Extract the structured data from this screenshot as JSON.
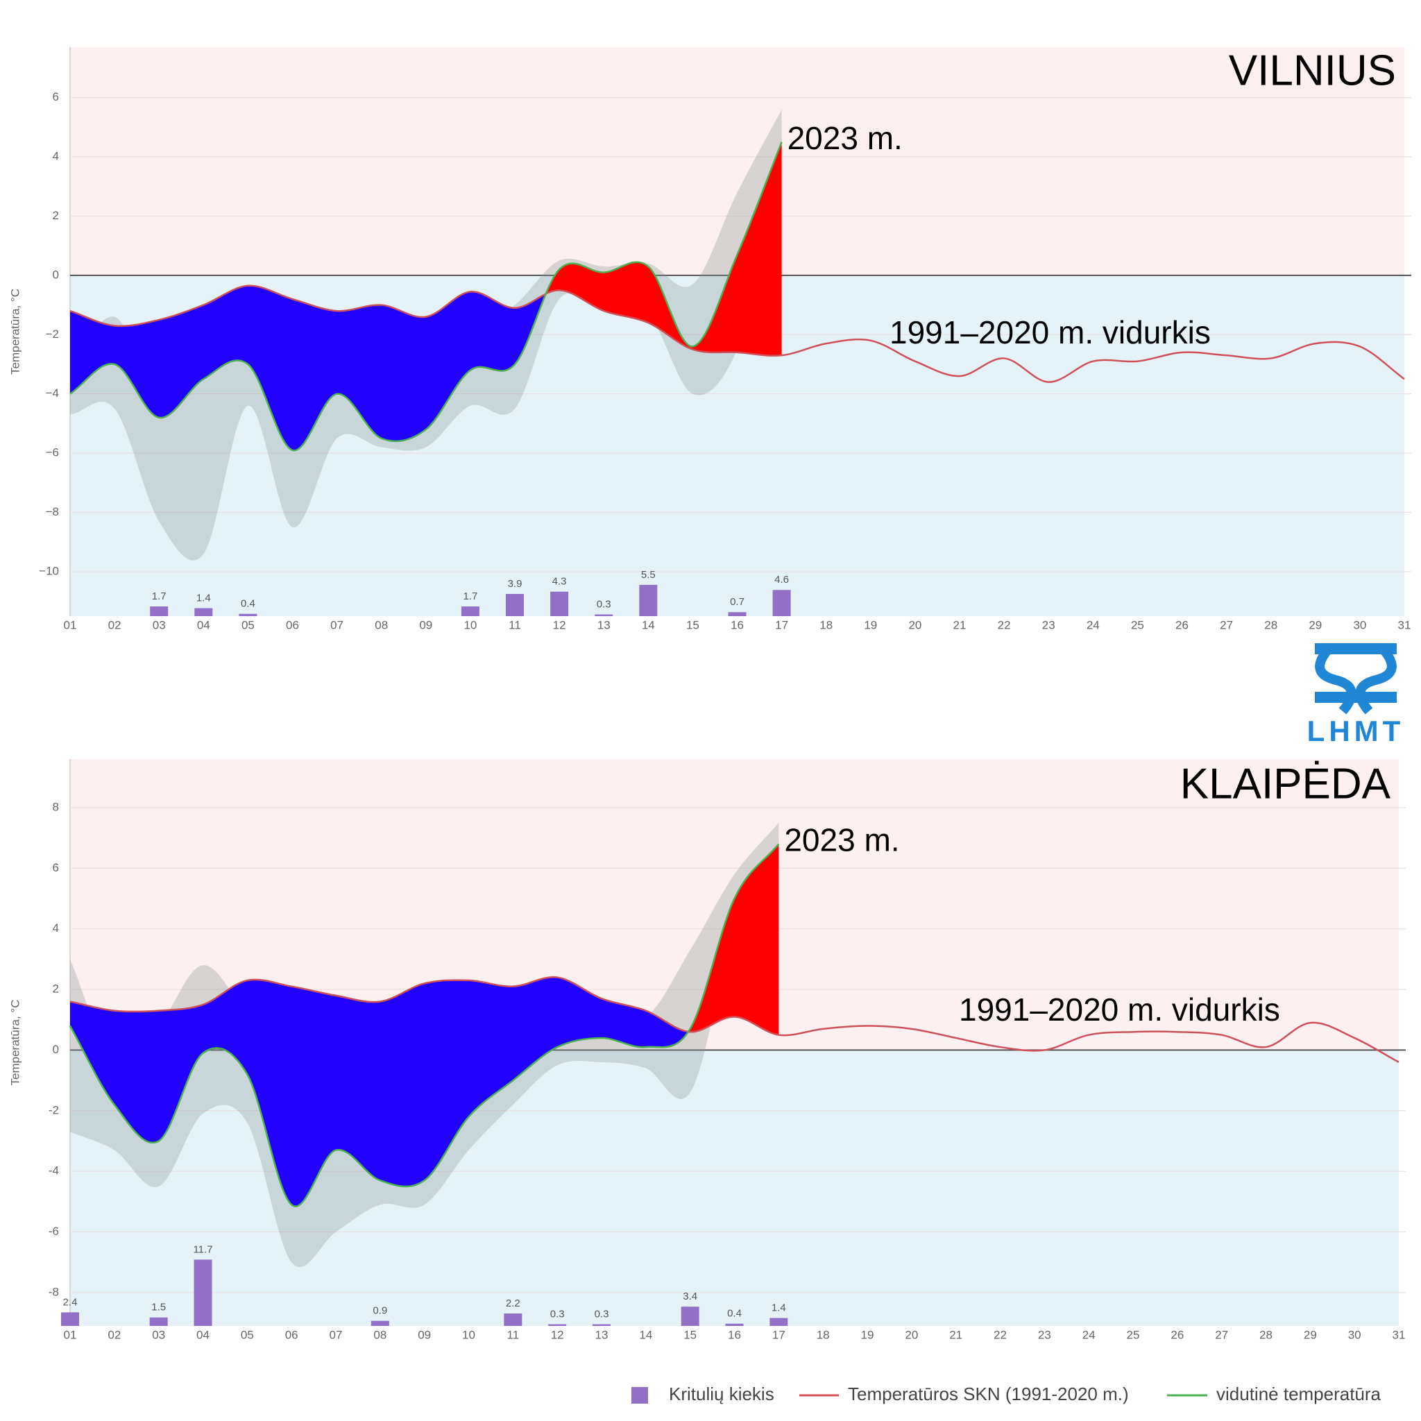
{
  "chart_data": [
    {
      "type": "line",
      "title": "VILNIUS",
      "annotation_year": "2023 m.",
      "annotation_norm": "1991–2020 m. vidurkis",
      "y_label": "Temperatūra, °C",
      "categories": [
        "01",
        "02",
        "03",
        "04",
        "05",
        "06",
        "07",
        "08",
        "09",
        "10",
        "11",
        "12",
        "13",
        "14",
        "15",
        "16",
        "17",
        "18",
        "19",
        "20",
        "21",
        "22",
        "23",
        "24",
        "25",
        "26",
        "27",
        "28",
        "29",
        "30",
        "31"
      ],
      "ylim": [
        -11.5,
        7.7
      ],
      "yticks": [
        {
          "value": -10,
          "label": "−10"
        },
        {
          "value": -8,
          "label": "−8"
        },
        {
          "value": -6,
          "label": "−6"
        },
        {
          "value": -4,
          "label": "−4"
        },
        {
          "value": -2,
          "label": "−2"
        },
        0,
        2,
        4,
        6
      ],
      "y2lim": [
        0,
        100
      ],
      "grid": true,
      "series": [
        {
          "name": "Temperatūros SKN (1991-2020 m.)",
          "color": "#d0505a",
          "values": [
            -1.2,
            -1.7,
            -1.5,
            -1.0,
            -0.35,
            -0.8,
            -1.2,
            -1.0,
            -1.4,
            -0.55,
            -1.1,
            -0.5,
            -1.2,
            -1.6,
            -2.5,
            -2.6,
            -2.7,
            -2.3,
            -2.2,
            -2.9,
            -3.4,
            -2.8,
            -3.6,
            -2.9,
            -2.9,
            -2.6,
            -2.7,
            -2.8,
            -2.3,
            -2.4,
            -3.5
          ]
        },
        {
          "name": "vidutinė temperatūra",
          "color": "#4caf50",
          "values": [
            -4.0,
            -3.0,
            -4.8,
            -3.5,
            -3.0,
            -5.9,
            -4.0,
            -5.5,
            -5.2,
            -3.2,
            -3.0,
            0.2,
            0.1,
            0.3,
            -2.4,
            0.7,
            4.5,
            null,
            null,
            null,
            null,
            null,
            null,
            null,
            null,
            null,
            null,
            null,
            null,
            null,
            null
          ]
        },
        {
          "name": "Kritulių kiekis",
          "color": "#9370c8",
          "axis": "y2",
          "values": [
            null,
            null,
            1.7,
            1.4,
            0.4,
            null,
            null,
            null,
            null,
            1.7,
            3.9,
            4.3,
            0.3,
            5.5,
            null,
            0.7,
            4.6,
            null,
            null,
            null,
            null,
            null,
            null,
            null,
            null,
            null,
            null,
            null,
            null,
            null,
            null
          ]
        }
      ],
      "band": {
        "low": [
          -4.7,
          -4.5,
          -8.3,
          -9.4,
          -4.4,
          -8.5,
          -5.5,
          -5.8,
          -5.8,
          -4.4,
          -4.5,
          -0.8,
          -1.1,
          -1.3,
          -4.0,
          -2.5,
          3.0
        ],
        "high": [
          -3.0,
          -1.4,
          -3.8,
          -1.6,
          -2.3,
          -3.9,
          -3.4,
          -4.8,
          -4.4,
          -1.8,
          -1.0,
          0.5,
          0.3,
          0.4,
          -0.3,
          2.8,
          5.6
        ]
      }
    },
    {
      "type": "line",
      "title": "KLAIPĖDA",
      "annotation_year": "2023 m.",
      "annotation_norm": "1991–2020 m. vidurkis",
      "y_label": "Temperatūra, °C",
      "categories": [
        "01",
        "02",
        "03",
        "04",
        "05",
        "06",
        "07",
        "08",
        "09",
        "10",
        "11",
        "12",
        "13",
        "14",
        "15",
        "16",
        "17",
        "18",
        "19",
        "20",
        "21",
        "22",
        "23",
        "24",
        "25",
        "26",
        "27",
        "28",
        "29",
        "30",
        "31"
      ],
      "ylim": [
        -9.1,
        9.6
      ],
      "yticks": [
        -8,
        -6,
        -4,
        -2,
        0,
        2,
        4,
        6,
        8
      ],
      "y2lim": [
        0,
        100
      ],
      "grid": true,
      "series": [
        {
          "name": "Temperatūros SKN (1991-2020 m.)",
          "color": "#d0505a",
          "values": [
            1.6,
            1.3,
            1.3,
            1.5,
            2.3,
            2.1,
            1.8,
            1.6,
            2.2,
            2.3,
            2.1,
            2.4,
            1.7,
            1.3,
            0.6,
            1.1,
            0.5,
            0.7,
            0.8,
            0.7,
            0.4,
            0.1,
            0.0,
            0.5,
            0.6,
            0.6,
            0.5,
            0.1,
            0.9,
            0.4,
            -0.4
          ]
        },
        {
          "name": "vidutinė temperatūra",
          "color": "#4caf50",
          "values": [
            0.8,
            -1.8,
            -3.0,
            -0.1,
            -0.8,
            -5.1,
            -3.3,
            -4.3,
            -4.3,
            -2.2,
            -1.0,
            0.1,
            0.4,
            0.1,
            0.7,
            5.0,
            6.8,
            null,
            null,
            null,
            null,
            null,
            null,
            null,
            null,
            null,
            null,
            null,
            null,
            null,
            null
          ]
        },
        {
          "name": "Kritulių kiekis",
          "color": "#9370c8",
          "axis": "y2",
          "values": [
            2.4,
            null,
            1.5,
            11.7,
            null,
            null,
            null,
            0.9,
            null,
            null,
            2.2,
            0.3,
            0.3,
            null,
            3.4,
            0.4,
            1.4,
            null,
            null,
            null,
            null,
            null,
            null,
            null,
            null,
            null,
            null,
            null,
            null,
            null,
            null
          ]
        }
      ],
      "band": {
        "low": [
          -2.7,
          -3.3,
          -4.5,
          -2.1,
          -2.4,
          -7.0,
          -6.0,
          -5.1,
          -5.1,
          -3.3,
          -1.8,
          -0.5,
          -0.4,
          -0.6,
          -1.4,
          3.8,
          6.0
        ],
        "high": [
          3.0,
          -0.4,
          0.8,
          2.8,
          1.0,
          -2.0,
          -1.8,
          -2.5,
          -3.5,
          -1.0,
          0.3,
          0.8,
          1.4,
          1.1,
          3.3,
          5.8,
          7.5
        ]
      }
    }
  ],
  "logo": "LHMT"
}
